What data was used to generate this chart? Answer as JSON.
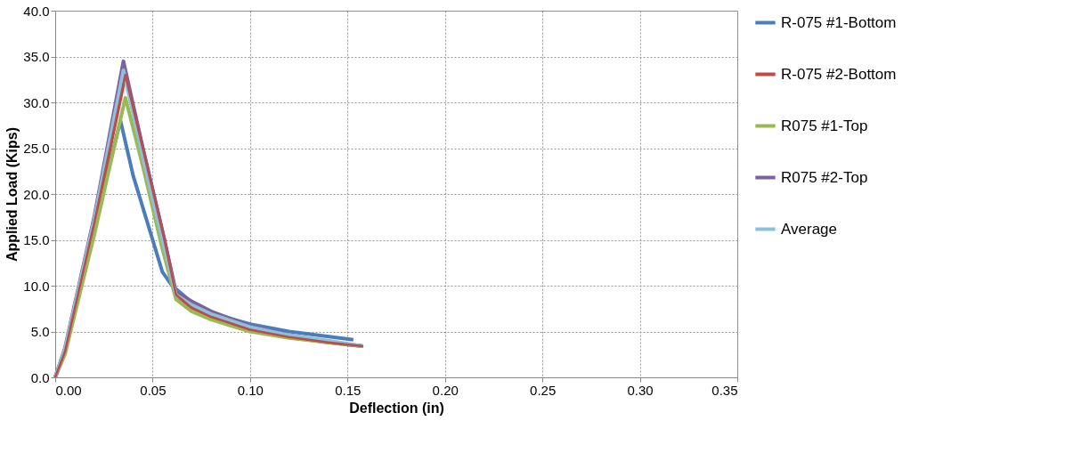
{
  "chart_data": {
    "type": "line",
    "xlabel": "Deflection (in)",
    "ylabel": "Applied Load (Kips)",
    "xlim": [
      0,
      0.35
    ],
    "xticks": [
      {
        "value": 0,
        "label": "0.00"
      },
      {
        "value": 0.05,
        "label": "0.05"
      },
      {
        "value": 0.1,
        "label": "0.10"
      },
      {
        "value": 0.15,
        "label": "0.15"
      },
      {
        "value": 0.2,
        "label": "0.20"
      },
      {
        "value": 0.25,
        "label": "0.25"
      },
      {
        "value": 0.3,
        "label": "0.30"
      },
      {
        "value": 0.35,
        "label": "0.35"
      }
    ],
    "ylim": [
      0,
      40
    ],
    "yticks": [
      {
        "value": 0,
        "label": "0.0"
      },
      {
        "value": 5,
        "label": "5.0"
      },
      {
        "value": 10,
        "label": "10.0"
      },
      {
        "value": 15,
        "label": "15.0"
      },
      {
        "value": 20,
        "label": "20.0"
      },
      {
        "value": 25,
        "label": "25.0"
      },
      {
        "value": 30,
        "label": "30.0"
      },
      {
        "value": 35,
        "label": "35.0"
      },
      {
        "value": 40,
        "label": "40.0"
      }
    ],
    "grid": true,
    "legend": "right",
    "marker": "none",
    "line_style": "solid",
    "series": [
      {
        "name": "R-075 #1-Bottom",
        "color": "#4a7ebb",
        "x": [
          0,
          0.005,
          0.02,
          0.0335,
          0.04,
          0.05,
          0.055,
          0.06,
          0.07,
          0.08,
          0.1,
          0.12,
          0.153
        ],
        "values": [
          0,
          3,
          16.5,
          28,
          22,
          15,
          11.5,
          10,
          8.2,
          7,
          5.8,
          5,
          4.1
        ]
      },
      {
        "name": "R-075 #2-Bottom",
        "color": "#be4b48",
        "x": [
          0,
          0.005,
          0.02,
          0.036,
          0.046,
          0.056,
          0.062,
          0.07,
          0.08,
          0.1,
          0.12,
          0.14,
          0.158
        ],
        "values": [
          0,
          2.8,
          16.8,
          33,
          24,
          15,
          9,
          7.6,
          6.6,
          5.2,
          4.4,
          3.8,
          3.4
        ]
      },
      {
        "name": "R075 #1-Top",
        "color": "#98b954",
        "x": [
          0,
          0.005,
          0.02,
          0.036,
          0.045,
          0.055,
          0.062,
          0.07,
          0.08,
          0.1,
          0.12,
          0.14,
          0.157
        ],
        "values": [
          0,
          2.5,
          15.5,
          30.5,
          23,
          14,
          8.5,
          7.2,
          6.3,
          5,
          4.3,
          3.8,
          3.4
        ]
      },
      {
        "name": "R075 #2-Top",
        "color": "#7d60a0",
        "x": [
          0,
          0.005,
          0.02,
          0.035,
          0.045,
          0.055,
          0.062,
          0.07,
          0.08,
          0.1,
          0.12,
          0.14,
          0.158
        ],
        "values": [
          0,
          3.2,
          17.5,
          34.5,
          25,
          16,
          9.3,
          8.3,
          7.2,
          5.6,
          4.6,
          3.9,
          3.4
        ]
      },
      {
        "name": "Average",
        "color": "#8cc1dc",
        "x": [
          0,
          0.005,
          0.02,
          0.035,
          0.045,
          0.055,
          0.062,
          0.07,
          0.08,
          0.1,
          0.12,
          0.14,
          0.158
        ],
        "values": [
          0,
          3.1,
          17.2,
          33.5,
          24,
          15,
          9,
          7.9,
          6.9,
          5.5,
          4.6,
          4,
          3.4
        ]
      }
    ]
  }
}
